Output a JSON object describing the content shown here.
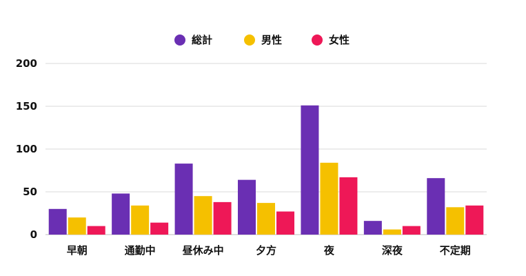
{
  "chart_data": {
    "type": "bar",
    "categories": [
      "早朝",
      "通勤中",
      "昼休み中",
      "夕方",
      "夜",
      "深夜",
      "不定期"
    ],
    "series": [
      {
        "name": "総計",
        "color": "#6a2fb3",
        "values": [
          30,
          48,
          83,
          64,
          151,
          16,
          66
        ]
      },
      {
        "name": "男性",
        "color": "#f5c000",
        "values": [
          20,
          34,
          45,
          37,
          84,
          6,
          32
        ]
      },
      {
        "name": "女性",
        "color": "#ee1857",
        "values": [
          10,
          14,
          38,
          27,
          67,
          10,
          34
        ]
      }
    ],
    "ylim": [
      0,
      200
    ],
    "yticks": [
      0,
      50,
      100,
      150,
      200
    ],
    "title": "",
    "xlabel": "",
    "ylabel": "",
    "grid": true,
    "legend_position": "top-center"
  }
}
